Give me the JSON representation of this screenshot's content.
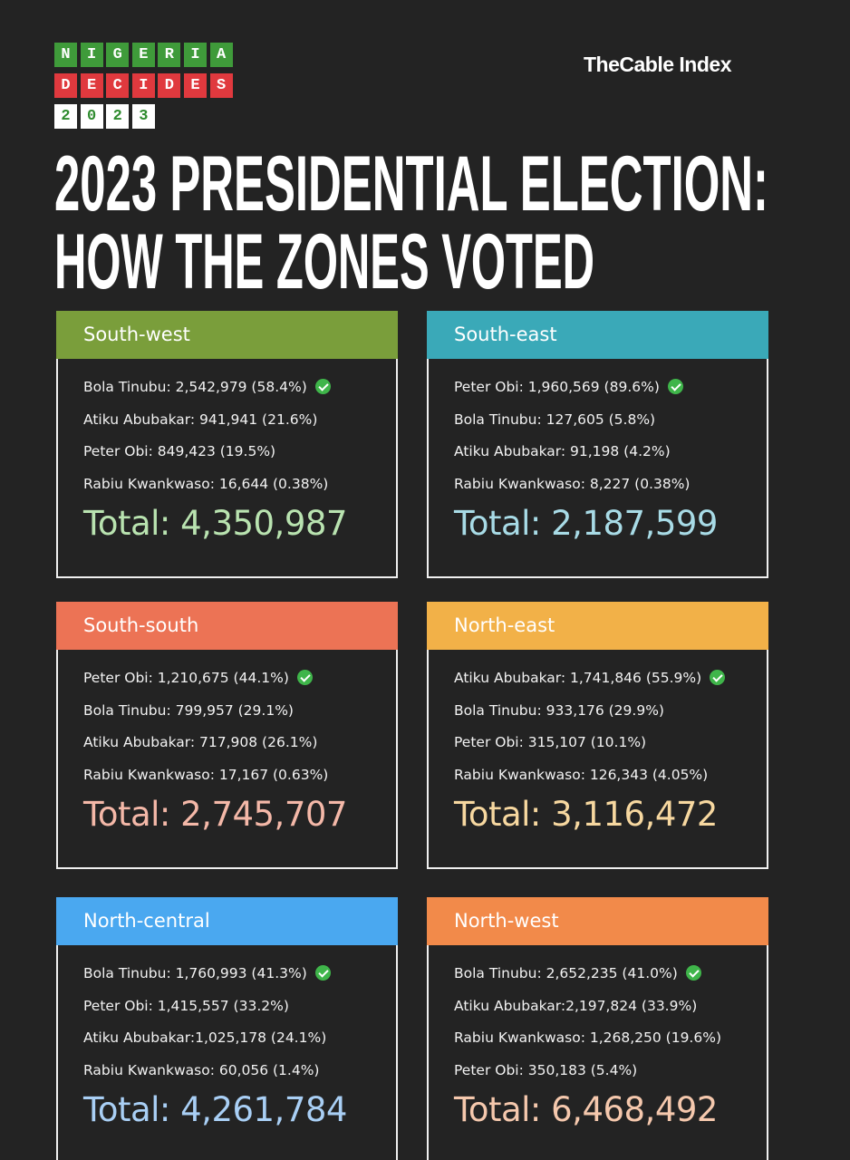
{
  "logo": {
    "rows": [
      {
        "letters": [
          "N",
          "I",
          "G",
          "E",
          "R",
          "I",
          "A"
        ],
        "box": "#3f9b3a",
        "ink": "#ffffff"
      },
      {
        "letters": [
          "D",
          "E",
          "C",
          "I",
          "D",
          "E",
          "S"
        ],
        "box": "#e0393e",
        "ink": "#ffffff"
      },
      {
        "letters": [
          "2",
          "0",
          "2",
          "3"
        ],
        "box": "#ffffff",
        "ink": "#2e8b2e"
      }
    ]
  },
  "brand": "TheCable Index",
  "title": [
    "2023 PRESIDENTIAL ELECTION:",
    "HOW THE ZONES VOTED"
  ],
  "zones": [
    {
      "name": "South-west",
      "color": "#7a9e3b",
      "total_color": "#b9e3b0",
      "lines": [
        "Bola Tinubu: 2,542,979 (58.4%)",
        "Atiku Abubakar: 941,941 (21.6%)",
        "Peter Obi: 849,423 (19.5%)",
        "Rabiu Kwankwaso: 16,644 (0.38%)"
      ],
      "total": "Total: 4,350,987"
    },
    {
      "name": "South-east",
      "color": "#3aa9b8",
      "total_color": "#a8dbe6",
      "lines": [
        "Peter Obi: 1,960,569 (89.6%)",
        "Bola Tinubu: 127,605 (5.8%)",
        "Atiku Abubakar: 91,198 (4.2%)",
        "Rabiu Kwankwaso: 8,227  (0.38%)"
      ],
      "total": "Total: 2,187,599"
    },
    {
      "name": "South-south",
      "color": "#ec7355",
      "total_color": "#f4b8a8",
      "lines": [
        "Peter Obi: 1,210,675 (44.1%)",
        "Bola Tinubu: 799,957 (29.1%)",
        "Atiku Abubakar: 717,908 (26.1%)",
        "Rabiu Kwankwaso: 17,167 (0.63%)"
      ],
      "total": "Total: 2,745,707"
    },
    {
      "name": "North-east",
      "color": "#f2b148",
      "total_color": "#f7d8a0",
      "lines": [
        "Atiku Abubakar: 1,741,846 (55.9%)",
        "Bola Tinubu: 933,176 (29.9%)",
        "Peter Obi: 315,107 (10.1%)",
        "Rabiu Kwankwaso: 126,343 (4.05%)"
      ],
      "total": "Total: 3,116,472"
    },
    {
      "name": "North-central",
      "color": "#4aa8f0",
      "total_color": "#a9cff5",
      "lines": [
        "Bola Tinubu: 1,760,993 (41.3%)",
        "Peter Obi: 1,415,557 (33.2%)",
        "Atiku Abubakar:1,025,178 (24.1%)",
        "Rabiu Kwankwaso: 60,056 (1.4%)"
      ],
      "total": "Total: 4,261,784"
    },
    {
      "name": "North-west",
      "color": "#f28a4a",
      "total_color": "#f5c8ad",
      "lines": [
        "Bola Tinubu: 2,652,235 (41.0%)",
        "Atiku Abubakar:2,197,824 (33.9%)",
        "Rabiu Kwankwaso: 1,268,250 (19.6%)",
        "Peter Obi: 350,183 (5.4%)"
      ],
      "total": "Total: 6,468,492"
    }
  ]
}
